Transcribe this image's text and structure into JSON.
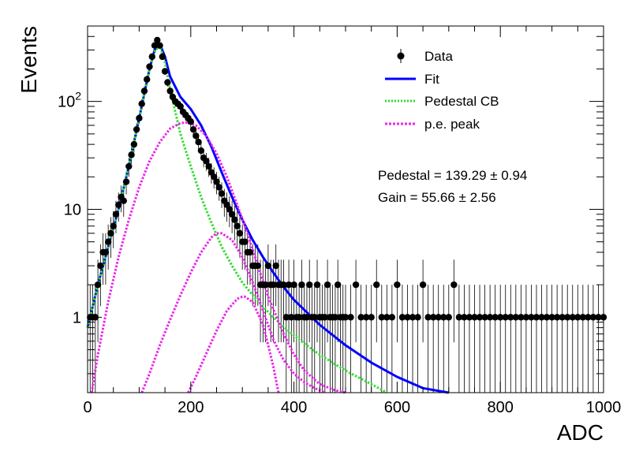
{
  "chart_data": {
    "type": "scatter",
    "xlabel": "ADC",
    "ylabel": "Events",
    "xlim": [
      0,
      1000
    ],
    "ylim": [
      0.2,
      500
    ],
    "yscale": "log",
    "x_ticks": [
      {
        "value": 0,
        "label": "0"
      },
      {
        "value": 200,
        "label": "200"
      },
      {
        "value": 400,
        "label": "400"
      },
      {
        "value": 600,
        "label": "600"
      },
      {
        "value": 800,
        "label": "800"
      },
      {
        "value": 1000,
        "label": "1000"
      }
    ],
    "y_ticks": [
      {
        "value": 1,
        "label": "1"
      },
      {
        "value": 10,
        "label": "10"
      },
      {
        "value": 100,
        "label": "10^2"
      }
    ],
    "legend": {
      "placement": "top-right",
      "entries": [
        {
          "label": "Data",
          "style": "marker",
          "color": "#000000"
        },
        {
          "label": "Fit",
          "style": "line",
          "color": "#0000ff"
        },
        {
          "label": "Pedestal CB",
          "style": "dotted",
          "color": "#33dd33"
        },
        {
          "label": "p.e. peak",
          "style": "dotted",
          "color": "#ee22ee"
        }
      ]
    },
    "annotations": [
      "Pedestal = 139.29 ± 0.94",
      "Gain = 55.66 ± 2.56"
    ],
    "fit_parameters": {
      "pedestal": 139.29,
      "pedestal_err": 0.94,
      "gain": 55.66,
      "gain_err": 2.56
    },
    "series": [
      {
        "name": "Data",
        "kind": "points_with_errors",
        "color": "#000000",
        "x": [
          5,
          10,
          15,
          20,
          25,
          30,
          35,
          40,
          45,
          50,
          55,
          60,
          65,
          70,
          75,
          80,
          85,
          90,
          95,
          100,
          105,
          110,
          115,
          120,
          125,
          130,
          135,
          140,
          145,
          150,
          155,
          160,
          165,
          170,
          175,
          180,
          185,
          190,
          195,
          200,
          205,
          210,
          215,
          220,
          225,
          230,
          235,
          240,
          245,
          250,
          255,
          260,
          265,
          270,
          275,
          280,
          285,
          290,
          295,
          300,
          305,
          310,
          315,
          320,
          325,
          330,
          335,
          340,
          345,
          350,
          355,
          360,
          365,
          370,
          375,
          380,
          385,
          390,
          395,
          400,
          405,
          410,
          415,
          420,
          425,
          430,
          435,
          440,
          445,
          450,
          455,
          460,
          465,
          470,
          475,
          480,
          485,
          490,
          495,
          500,
          510,
          520,
          530,
          540,
          550,
          560,
          570,
          580,
          590,
          600,
          610,
          620,
          630,
          640,
          650,
          660,
          670,
          680,
          690,
          700,
          710,
          720,
          730,
          740,
          750,
          760,
          770,
          780,
          790,
          800,
          810,
          820,
          830,
          840,
          850,
          860,
          870,
          880,
          890,
          900,
          910,
          920,
          930,
          940,
          950,
          960,
          970,
          980,
          990,
          1000
        ],
        "y": [
          1,
          1,
          1,
          2,
          3,
          4,
          4,
          5,
          6,
          7,
          9,
          11,
          13,
          12,
          18,
          25,
          32,
          40,
          55,
          70,
          95,
          125,
          160,
          210,
          260,
          330,
          370,
          330,
          260,
          190,
          150,
          125,
          110,
          100,
          95,
          90,
          80,
          75,
          70,
          65,
          55,
          48,
          42,
          35,
          30,
          28,
          25,
          22,
          20,
          18,
          16,
          14,
          12,
          11,
          10,
          9,
          8,
          7,
          6,
          5,
          5,
          4,
          4,
          3,
          3,
          3,
          2,
          2,
          2,
          3,
          2,
          2,
          3,
          2,
          2,
          2,
          1,
          2,
          1,
          2,
          1,
          1,
          2,
          1,
          1,
          2,
          1,
          1,
          2,
          1,
          1,
          1,
          2,
          1,
          1,
          1,
          2,
          1,
          1,
          1,
          1,
          2,
          1,
          1,
          1,
          2,
          1,
          1,
          1,
          2,
          1,
          1,
          1,
          1,
          2,
          1,
          1,
          1,
          1,
          1,
          2,
          1,
          1,
          1,
          1,
          1,
          1,
          1,
          1,
          1,
          1,
          1,
          1,
          1,
          1,
          1,
          1,
          1,
          1,
          1,
          1,
          1,
          1,
          1,
          1,
          1,
          1,
          1,
          1,
          1
        ]
      },
      {
        "name": "Fit",
        "kind": "line",
        "color": "#0000ff",
        "x": [
          0,
          20,
          40,
          60,
          80,
          100,
          120,
          130,
          140,
          150,
          160,
          180,
          200,
          220,
          240,
          260,
          280,
          300,
          320,
          340,
          360,
          380,
          400,
          450,
          500,
          550,
          600,
          650,
          700
        ],
        "y": [
          0.8,
          2,
          4.5,
          10,
          25,
          70,
          200,
          300,
          340,
          260,
          170,
          110,
          85,
          60,
          38,
          22,
          13,
          8,
          5.2,
          3.6,
          2.6,
          1.9,
          1.45,
          0.85,
          0.55,
          0.38,
          0.28,
          0.22,
          0.2
        ]
      },
      {
        "name": "Pedestal CB",
        "kind": "dotted_line",
        "color": "#33dd33",
        "x": [
          0,
          20,
          40,
          60,
          80,
          100,
          120,
          130,
          140,
          150,
          160,
          170,
          180,
          200,
          220,
          240,
          260,
          280,
          300,
          320,
          340,
          360,
          380,
          400,
          420,
          450,
          500,
          550,
          580
        ],
        "y": [
          0.8,
          2,
          4.5,
          10,
          25,
          70,
          200,
          290,
          330,
          230,
          130,
          80,
          50,
          25,
          13,
          7.5,
          4.5,
          3,
          2.1,
          1.6,
          1.25,
          1,
          0.82,
          0.68,
          0.57,
          0.45,
          0.32,
          0.24,
          0.2
        ]
      },
      {
        "name": "p.e. peak",
        "kind": "dotted_line",
        "color": "#ee22ee",
        "x": [
          8,
          20,
          40,
          60,
          80,
          100,
          120,
          140,
          160,
          180,
          195,
          210,
          230,
          250,
          270,
          290,
          310,
          330,
          350,
          380,
          400,
          420,
          450,
          480,
          500
        ],
        "y": [
          0.2,
          0.45,
          1.4,
          3.6,
          8,
          16,
          28,
          42,
          56,
          63,
          64,
          60,
          48,
          33,
          20,
          11,
          6,
          3,
          1.55,
          0.7,
          0.45,
          0.32,
          0.24,
          0.21,
          0.2
        ]
      },
      {
        "name": "p.e. peak",
        "kind": "dotted_line",
        "color": "#ee22ee",
        "x": [
          105,
          120,
          140,
          160,
          180,
          200,
          220,
          240,
          250,
          260,
          280,
          300,
          320,
          340,
          360,
          380,
          400,
          420,
          440,
          460
        ],
        "y": [
          0.2,
          0.3,
          0.55,
          0.95,
          1.6,
          2.6,
          4,
          5.5,
          6,
          6,
          5.2,
          3.6,
          2.1,
          1.15,
          0.62,
          0.4,
          0.3,
          0.25,
          0.22,
          0.2
        ]
      },
      {
        "name": "p.e. peak",
        "kind": "dotted_line",
        "color": "#ee22ee",
        "x": [
          195,
          210,
          230,
          250,
          270,
          290,
          300,
          305,
          320,
          340,
          350,
          360,
          370
        ],
        "y": [
          0.2,
          0.28,
          0.46,
          0.75,
          1.15,
          1.48,
          1.55,
          1.55,
          1.38,
          0.85,
          0.55,
          0.35,
          0.2
        ]
      }
    ]
  }
}
